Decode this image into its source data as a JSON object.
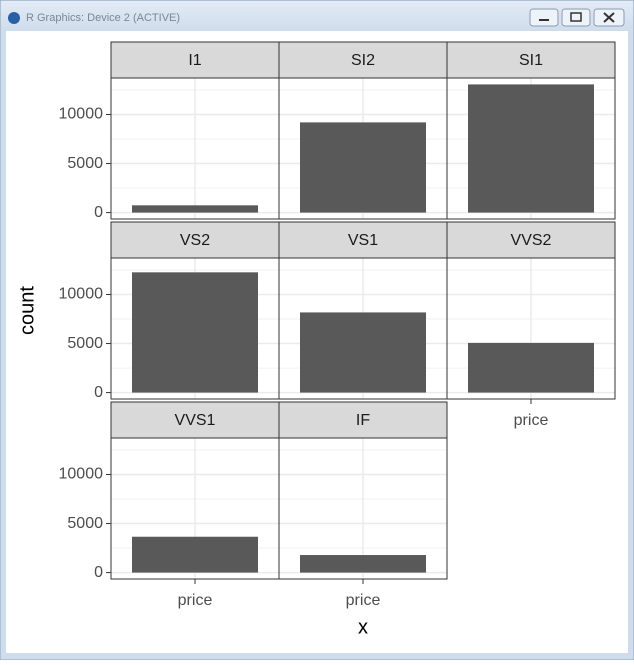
{
  "window": {
    "title": "R Graphics: Device 2 (ACTIVE)"
  },
  "chart_data": {
    "type": "bar",
    "xlabel": "x",
    "ylabel": "count",
    "categories": [
      "price"
    ],
    "facets": [
      {
        "title": "I1",
        "values": [
          741
        ]
      },
      {
        "title": "SI2",
        "values": [
          9194
        ]
      },
      {
        "title": "SI1",
        "values": [
          13065
        ]
      },
      {
        "title": "VS2",
        "values": [
          12258
        ]
      },
      {
        "title": "VS1",
        "values": [
          8171
        ]
      },
      {
        "title": "VVS2",
        "values": [
          5066
        ]
      },
      {
        "title": "VVS1",
        "values": [
          3655
        ]
      },
      {
        "title": "IF",
        "values": [
          1790
        ]
      }
    ],
    "color": "#595959",
    "ylim": [
      -653.25,
      13718.25
    ],
    "yticks": [
      0,
      5000,
      10000
    ],
    "yminor_ticks": [
      2500,
      7500,
      12500
    ],
    "grid": true
  }
}
